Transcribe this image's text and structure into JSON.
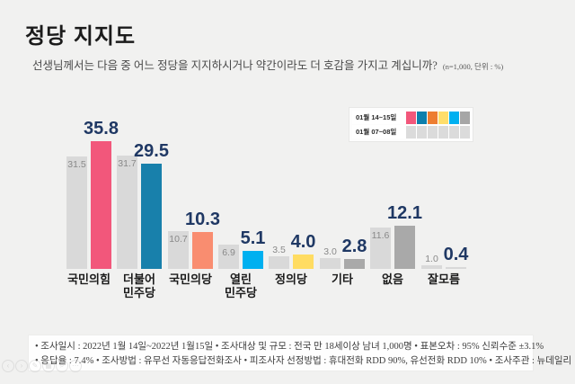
{
  "header": {
    "title": "정당 지지도",
    "subtitle": "선생님께서는 다음 중 어느 정당을 지지하시거나 약간이라도 더 호감을 가지고 계십니까?",
    "subtitle_note": "(n=1,000, 단위 : %)"
  },
  "legend": {
    "rows": [
      {
        "label": "01월 14~15일",
        "swatches": [
          "#f2577b",
          "#0c7fac",
          "#ed7d31",
          "#ffde6b",
          "#00b0f0",
          "#a6a6a6"
        ]
      },
      {
        "label": "01월 07~08일",
        "swatches": [
          "#dbdbdb",
          "#dbdbdb",
          "#dbdbdb",
          "#dbdbdb",
          "#dbdbdb",
          "#dbdbdb"
        ]
      }
    ]
  },
  "chart_data": {
    "type": "bar",
    "title": "정당 지지도",
    "subtitle": "선생님께서는 다음 중 어느 정당을 지지하시거나 약간이라도 더 호감을 가지고 계십니까?",
    "sample": "n=1,000",
    "unit": "%",
    "ylim": [
      0,
      40
    ],
    "grid": false,
    "legend_position": "top-right",
    "categories": [
      "국민의힘",
      "더불어민주당",
      "국민의당",
      "열린민주당",
      "정의당",
      "기타",
      "없음",
      "잘모름"
    ],
    "category_lines": [
      [
        "국민의힘"
      ],
      [
        "더불어",
        "민주당"
      ],
      [
        "국민의당"
      ],
      [
        "열린",
        "민주당"
      ],
      [
        "정의당"
      ],
      [
        "기타"
      ],
      [
        "없음"
      ],
      [
        "잘모름"
      ]
    ],
    "series": [
      {
        "name": "01월 07~08일",
        "values": [
          31.5,
          31.7,
          10.7,
          6.9,
          3.5,
          3.0,
          11.6,
          1.0
        ],
        "colors": [
          "#d9d9d9",
          "#d9d9d9",
          "#d9d9d9",
          "#d9d9d9",
          "#d9d9d9",
          "#d9d9d9",
          "#d9d9d9",
          "#d9d9d9"
        ]
      },
      {
        "name": "01월 14~15일",
        "values": [
          35.8,
          29.5,
          10.3,
          5.1,
          4.0,
          2.8,
          12.1,
          0.4
        ],
        "colors": [
          "#f2577b",
          "#1880ab",
          "#f98d70",
          "#00b0f0",
          "#ffdc62",
          "#a9a9a9",
          "#a9a9a9",
          "#d8d8d8"
        ]
      }
    ]
  },
  "footer": {
    "line1": "• 조사일시 : 2022년 1월 14일~2022년 1월15일     • 조사대상 및 규모 : 전국 만 18세이상 남녀  1,000명    • 표본오차 : 95% 신뢰수준 ±3.1%",
    "line2": "• 응답율 : 7.4%    • 조사방법 : 유무선 자동응답전화조사      • 피조사자 선정방법 : 휴대전화 RDD  90%, 유선전화 RDD  10%   • 조사주관 : 뉴데일리"
  },
  "toolbar": {
    "icons": [
      {
        "name": "chevron-left-icon",
        "glyph": "‹"
      },
      {
        "name": "chevron-right-icon",
        "glyph": "›"
      },
      {
        "name": "edit-icon",
        "glyph": "✎"
      },
      {
        "name": "grid-icon",
        "glyph": "▦"
      },
      {
        "name": "zoom-icon",
        "glyph": "⌕"
      },
      {
        "name": "more-icon",
        "glyph": "⋯"
      }
    ]
  }
}
